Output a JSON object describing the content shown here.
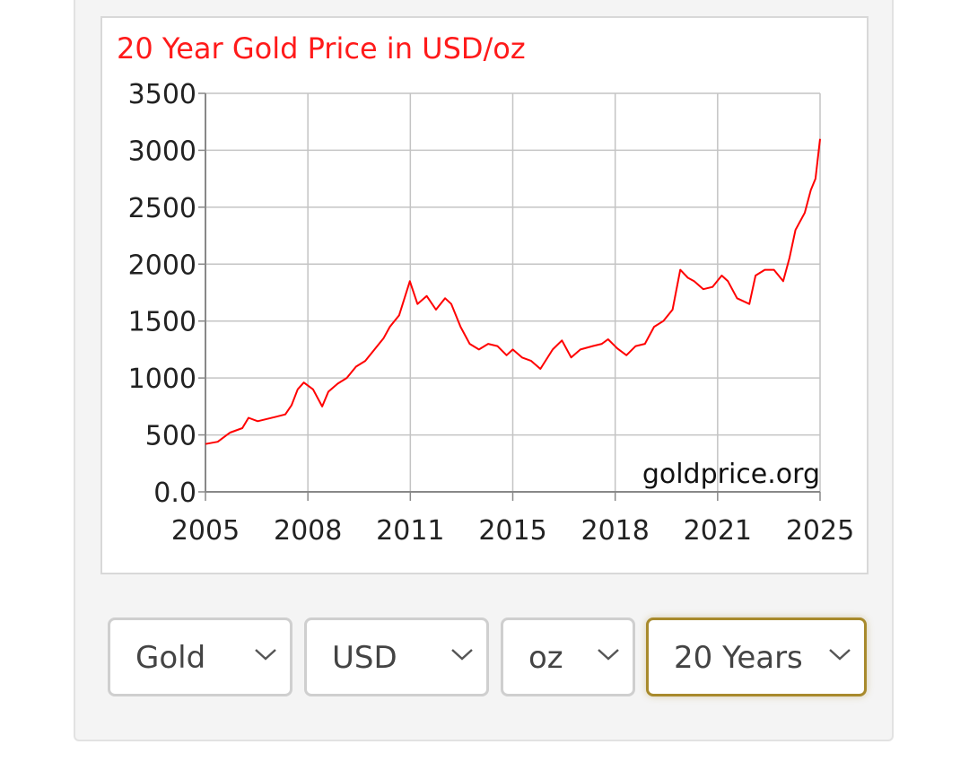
{
  "chart_data": {
    "type": "line",
    "title": "20 Year Gold Price in USD/oz",
    "watermark": "goldprice.org",
    "x_ticks": [
      "2005",
      "2008",
      "2011",
      "2015",
      "2018",
      "2021",
      "2025"
    ],
    "y_ticks": [
      "0.0",
      "500",
      "1000",
      "1500",
      "2000",
      "2500",
      "3000",
      "3500"
    ],
    "xlim": [
      2005,
      2025
    ],
    "ylim": [
      0,
      3500
    ],
    "grid": true,
    "series": [
      {
        "color": "#ff0000",
        "x": [
          2005.0,
          2005.4,
          2005.8,
          2006.2,
          2006.4,
          2006.7,
          2007.0,
          2007.3,
          2007.6,
          2007.8,
          2008.0,
          2008.2,
          2008.5,
          2008.8,
          2009.0,
          2009.3,
          2009.6,
          2009.9,
          2010.2,
          2010.5,
          2010.8,
          2011.0,
          2011.3,
          2011.65,
          2011.9,
          2012.2,
          2012.5,
          2012.8,
          2013.0,
          2013.3,
          2013.6,
          2013.9,
          2014.2,
          2014.5,
          2014.8,
          2015.0,
          2015.3,
          2015.6,
          2015.9,
          2016.3,
          2016.6,
          2016.9,
          2017.2,
          2017.6,
          2017.9,
          2018.1,
          2018.4,
          2018.7,
          2019.0,
          2019.3,
          2019.6,
          2019.9,
          2020.2,
          2020.45,
          2020.7,
          2020.9,
          2021.2,
          2021.5,
          2021.8,
          2022.0,
          2022.3,
          2022.7,
          2022.9,
          2023.2,
          2023.5,
          2023.8,
          2024.0,
          2024.2,
          2024.5,
          2024.7,
          2024.85,
          2025.0
        ],
        "y": [
          420,
          440,
          520,
          560,
          650,
          620,
          640,
          660,
          680,
          760,
          900,
          960,
          900,
          750,
          880,
          950,
          1000,
          1100,
          1150,
          1250,
          1350,
          1450,
          1550,
          1850,
          1650,
          1720,
          1600,
          1700,
          1650,
          1450,
          1300,
          1250,
          1300,
          1280,
          1200,
          1250,
          1180,
          1150,
          1080,
          1250,
          1330,
          1180,
          1250,
          1280,
          1300,
          1340,
          1260,
          1200,
          1280,
          1300,
          1450,
          1500,
          1600,
          1950,
          1880,
          1850,
          1780,
          1800,
          1900,
          1850,
          1700,
          1650,
          1900,
          1950,
          1950,
          1850,
          2050,
          2300,
          2450,
          2650,
          2750,
          3100
        ]
      }
    ]
  },
  "controls": {
    "metal": "Gold",
    "currency": "USD",
    "unit": "oz",
    "period": "20 Years"
  }
}
